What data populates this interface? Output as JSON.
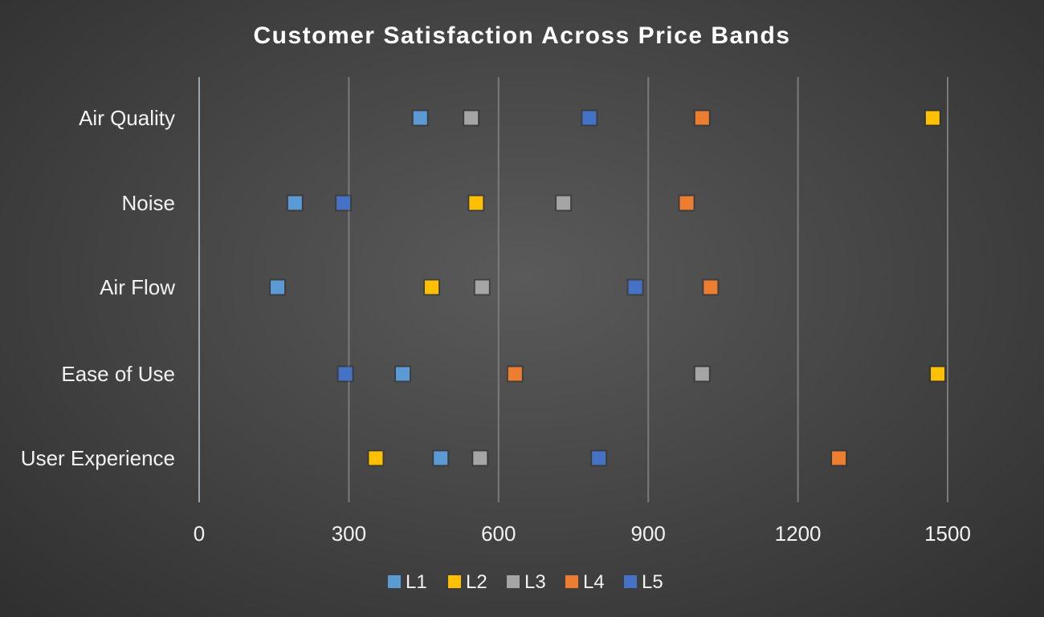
{
  "chart_data": {
    "type": "scatter",
    "title": "Customer Satisfaction Across Price Bands",
    "xlabel": "",
    "ylabel": "",
    "categories": [
      "Air Quality",
      "Noise",
      "Air Flow",
      "Ease of Use",
      "User Experience"
    ],
    "xlim": [
      0,
      1500
    ],
    "xticks": [
      "0",
      "300",
      "600",
      "900",
      "1200",
      "1500"
    ],
    "grid": "vertical",
    "legend_position": "bottom",
    "series": [
      {
        "name": "L1",
        "color": "#5b9bd5",
        "values": [
          443,
          192,
          157,
          408,
          484
        ]
      },
      {
        "name": "L2",
        "color": "#ffc000",
        "values": [
          1470,
          555,
          466,
          1480,
          354
        ]
      },
      {
        "name": "L3",
        "color": "#a5a5a5",
        "values": [
          545,
          730,
          567,
          1008,
          563
        ]
      },
      {
        "name": "L4",
        "color": "#ed7d31",
        "values": [
          1008,
          977,
          1025,
          633,
          1282
        ]
      },
      {
        "name": "L5",
        "color": "#4472c4",
        "values": [
          782,
          289,
          874,
          293,
          801
        ]
      }
    ]
  }
}
